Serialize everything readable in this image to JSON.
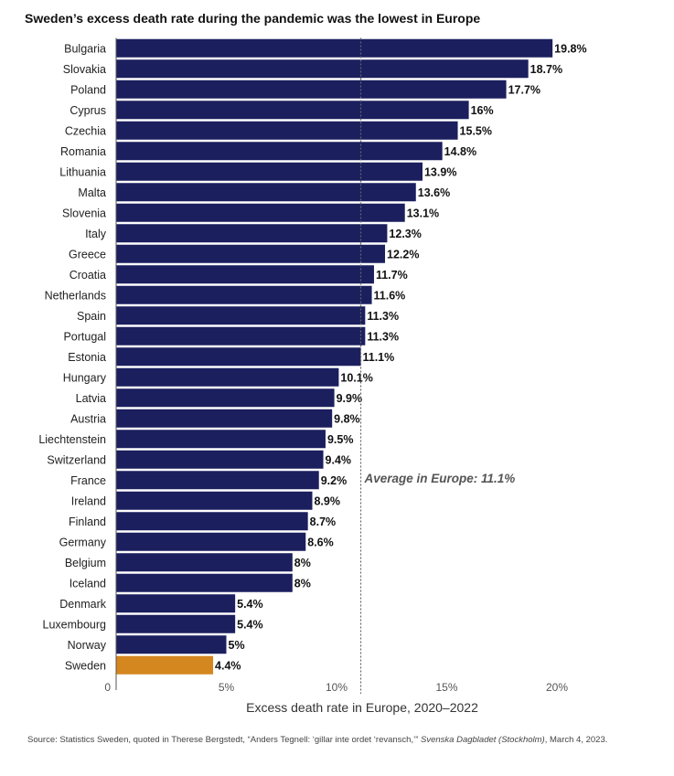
{
  "title": "Sweden’s excess death rate during the pandemic was the lowest in Europe",
  "chart_data": {
    "type": "bar",
    "orientation": "horizontal",
    "title": "Sweden’s excess death rate during the pandemic was the lowest in Europe",
    "xlabel": "Excess death rate in Europe, 2020–2022",
    "ylabel": "",
    "xlim": [
      0,
      20
    ],
    "x_ticks": [
      "0",
      "5%",
      "10%",
      "15%",
      "20%"
    ],
    "x_tick_values": [
      0,
      5,
      10,
      15,
      20
    ],
    "categories": [
      "Bulgaria",
      "Slovakia",
      "Poland",
      "Cyprus",
      "Czechia",
      "Romania",
      "Lithuania",
      "Malta",
      "Slovenia",
      "Italy",
      "Greece",
      "Croatia",
      "Netherlands",
      "Spain",
      "Portugal",
      "Estonia",
      "Hungary",
      "Latvia",
      "Austria",
      "Liechtenstein",
      "Switzerland",
      "France",
      "Ireland",
      "Finland",
      "Germany",
      "Belgium",
      "Iceland",
      "Denmark",
      "Luxembourg",
      "Norway",
      "Sweden"
    ],
    "values": [
      19.8,
      18.7,
      17.7,
      16,
      15.5,
      14.8,
      13.9,
      13.6,
      13.1,
      12.3,
      12.2,
      11.7,
      11.6,
      11.3,
      11.3,
      11.1,
      10.1,
      9.9,
      9.8,
      9.5,
      9.4,
      9.2,
      8.9,
      8.7,
      8.6,
      8,
      8,
      5.4,
      5.4,
      5,
      4.4
    ],
    "value_labels": [
      "19.8%",
      "18.7%",
      "17.7%",
      "16%",
      "15.5%",
      "14.8%",
      "13.9%",
      "13.6%",
      "13.1%",
      "12.3%",
      "12.2%",
      "11.7%",
      "11.6%",
      "11.3%",
      "11.3%",
      "11.1%",
      "10.1%",
      "9.9%",
      "9.8%",
      "9.5%",
      "9.4%",
      "9.2%",
      "8.9%",
      "8.7%",
      "8.6%",
      "8%",
      "8%",
      "5.4%",
      "5.4%",
      "5%",
      "4.4%"
    ],
    "highlight_category": "Sweden",
    "bar_color": "#1b1f5e",
    "highlight_color": "#d4861f",
    "reference_line": {
      "value": 11.1,
      "label": "Average in Europe: 11.1%"
    },
    "grid": false,
    "legend": "none"
  },
  "source": {
    "prefix": "Source: Statistics Sweden, quoted in Therese Bergstedt, “Anders Tegnell: ‘gillar inte ordet ‘revansch,’”",
    "publication": "Svenska Dagbladet (Stockholm)",
    "date": ", March 4, 2023."
  }
}
